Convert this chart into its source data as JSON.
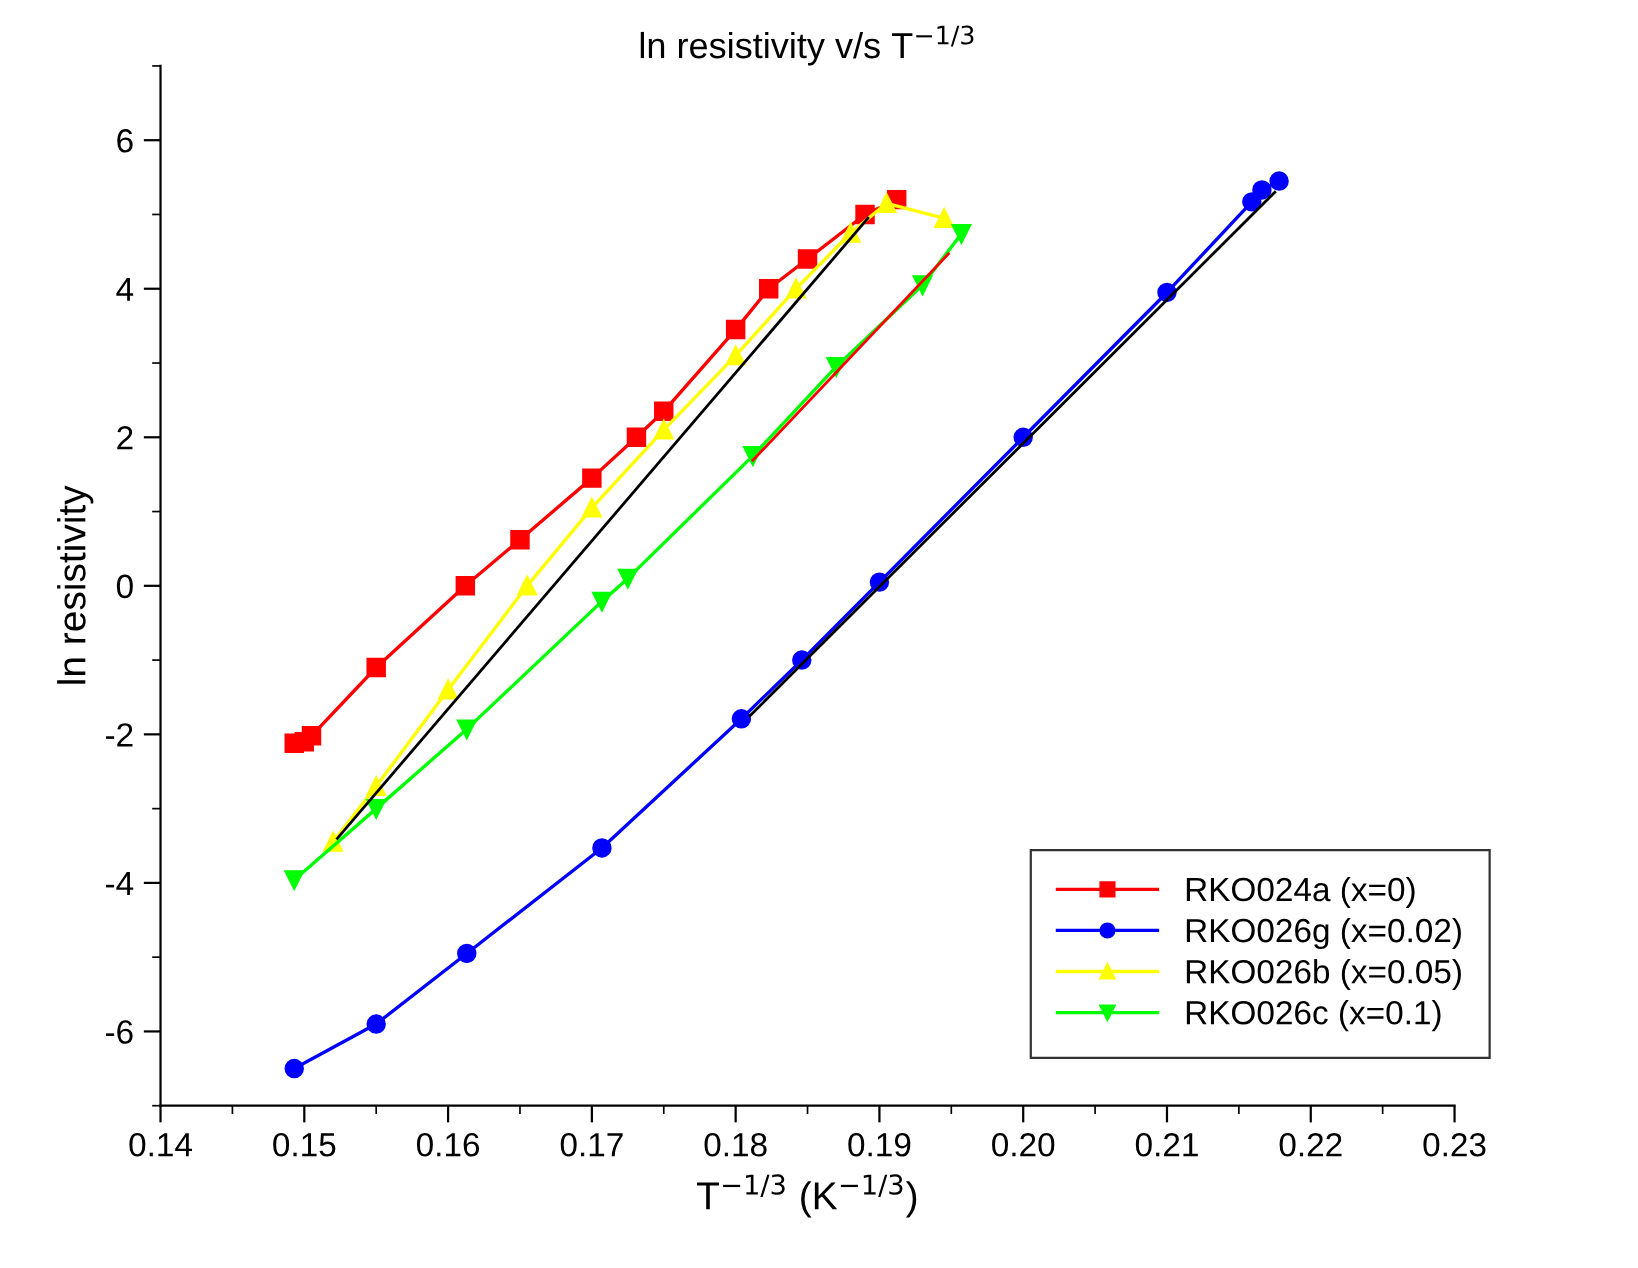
{
  "chart_data": {
    "type": "line",
    "title": "ln resistivity v/s T$^{−1/3}$",
    "xlabel": "T$^{−1/3}$ (K$^{−1/3}$)",
    "ylabel": "ln resistivity",
    "xlim": [
      0.14,
      0.23
    ],
    "xticks": [
      {
        "value": 0.14,
        "label": "0.14"
      },
      {
        "value": 0.15,
        "label": "0.15"
      },
      {
        "value": 0.16,
        "label": "0.16"
      },
      {
        "value": 0.17,
        "label": "0.17"
      },
      {
        "value": 0.18,
        "label": "0.18"
      },
      {
        "value": 0.19,
        "label": "0.19"
      },
      {
        "value": 0.2,
        "label": "0.20"
      },
      {
        "value": 0.21,
        "label": "0.21"
      },
      {
        "value": 0.22,
        "label": "0.22"
      },
      {
        "value": 0.23,
        "label": "0.23"
      }
    ],
    "ylim": [
      -7,
      7
    ],
    "yticks": [
      -6,
      -4,
      -2,
      0,
      2,
      4,
      6
    ],
    "grid": false,
    "legend": "bottom right",
    "series": [
      {
        "name": "RKO024a (x=0)",
        "color": "#ff0000",
        "marker": "square",
        "x": [
          0.1493,
          0.15,
          0.1505,
          0.155,
          0.1612,
          0.165,
          0.17,
          0.1731,
          0.175,
          0.18,
          0.1823,
          0.185,
          0.189,
          0.1912
        ],
        "values": [
          -2.12,
          -2.1,
          -2.02,
          -1.1,
          0,
          0.62,
          1.45,
          2,
          2.35,
          3.45,
          4,
          4.4,
          5.0,
          5.2
        ]
      },
      {
        "name": "RKO026g (x=0.02)",
        "color": "#0000ff",
        "marker": "circle",
        "x": [
          0.1493,
          0.155,
          0.1613,
          0.1707,
          0.1804,
          0.1846,
          0.19,
          0.2,
          0.21,
          0.2159,
          0.2166,
          0.2178
        ],
        "values": [
          -6.5,
          -5.9,
          -4.95,
          -3.53,
          -1.79,
          -1.0,
          0.05,
          2.0,
          3.95,
          5.17,
          5.33,
          5.45
        ]
      },
      {
        "name": "RKO026b (x=0.05)",
        "color": "#ffff00",
        "marker": "triangle",
        "x": [
          0.152,
          0.155,
          0.16,
          0.1655,
          0.17,
          0.175,
          0.18,
          0.1842,
          0.188,
          0.1905,
          0.1945
        ],
        "values": [
          -3.45,
          -2.7,
          -1.4,
          0,
          1.05,
          2.1,
          3.1,
          4,
          4.75,
          5.15,
          4.95
        ]
      },
      {
        "name": "RKO026c (x=0.1)",
        "color": "#00ff00",
        "marker": "triangle_down",
        "x": [
          0.1493,
          0.155,
          0.1613,
          0.1707,
          0.1725,
          0.1812,
          0.187,
          0.193,
          0.1957
        ],
        "values": [
          -3.96,
          -3.0,
          -1.93,
          -0.21,
          0.1,
          1.75,
          2.95,
          4.05,
          4.74
        ]
      },
      {
        "type": "line",
        "color": "#000000",
        "marker": "none",
        "x": [
          0.1523,
          0.1892
        ],
        "values": [
          -3.4,
          4.95
        ]
      },
      {
        "type": "line",
        "color": "#000000",
        "marker": "none",
        "x": [
          0.181,
          0.2175
        ],
        "values": [
          -1.75,
          5.3
        ]
      },
      {
        "type": "line",
        "color": "#ff0000",
        "marker": "none",
        "x": [
          0.1812,
          0.1948
        ],
        "values": [
          1.69,
          4.47
        ]
      }
    ]
  }
}
